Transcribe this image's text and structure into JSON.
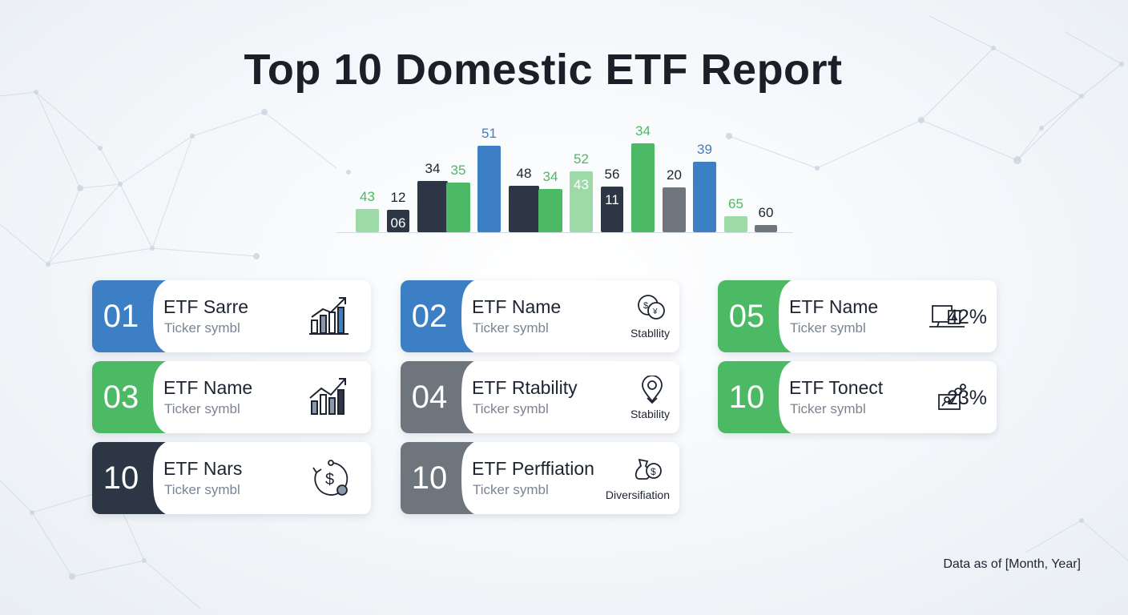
{
  "title": "Top 10 Domestic ETF Report",
  "footer": "Data as of [Month, Year]",
  "colors": {
    "blue": "#3d7fc4",
    "green": "#4cb964",
    "light_green": "#9ed9a8",
    "navy": "#2c3644",
    "gray": "#6f757d"
  },
  "chart_data": {
    "type": "bar",
    "bars": [
      {
        "value": 43,
        "color": "light_green"
      },
      {
        "value": 12,
        "color": "navy",
        "inner_label": "06"
      },
      {
        "value": 34,
        "color": "navy"
      },
      {
        "value": 35,
        "color": "green"
      },
      {
        "value": 51,
        "color": "blue"
      },
      {
        "value": 48,
        "color": "navy"
      },
      {
        "value": 34,
        "color": "green"
      },
      {
        "value": 52,
        "color": "light_green",
        "inner_label": "43"
      },
      {
        "value": 56,
        "color": "navy",
        "inner_label": "11"
      },
      {
        "value": 34,
        "color": "green"
      },
      {
        "value": 20,
        "color": "gray"
      },
      {
        "value": 39,
        "color": "blue"
      },
      {
        "value": 65,
        "color": "light_green"
      },
      {
        "value": 60,
        "color": "gray"
      }
    ]
  },
  "cards": [
    {
      "id": "01",
      "name": "ETF Sarre",
      "ticker": "Ticker symbl",
      "color": "blue",
      "icon": "bar-growth-icon"
    },
    {
      "id": "02",
      "name": "ETF Name",
      "ticker": "Ticker symbl",
      "color": "blue",
      "icon": "coins-exchange-icon",
      "caption": "Stabllity"
    },
    {
      "id": "05",
      "name": "ETF Name",
      "ticker": "Ticker symbl",
      "color": "green",
      "icon": "computer-monitor-icon",
      "value": "42%"
    },
    {
      "id": "03",
      "name": "ETF Name",
      "ticker": "Ticker symbl",
      "color": "green",
      "icon": "trend-chart-icon"
    },
    {
      "id": "04",
      "name": "ETF Rtability",
      "ticker": "Ticker symbl",
      "color": "gray",
      "icon": "location-pin-icon",
      "caption": "Stability"
    },
    {
      "id": "10",
      "name": "ETF Tonect",
      "ticker": "Ticker symbl",
      "color": "green",
      "icon": "growth-nodes-icon",
      "value": "23%"
    },
    {
      "id": "10",
      "name": "ETF Nars",
      "ticker": "Ticker symbl",
      "color": "navy",
      "icon": "dollar-cycle-icon"
    },
    {
      "id": "10",
      "name": "ETF Perffiation",
      "ticker": "Ticker symbl",
      "color": "gray",
      "icon": "money-bag-icon",
      "caption": "Diversifiation"
    }
  ]
}
